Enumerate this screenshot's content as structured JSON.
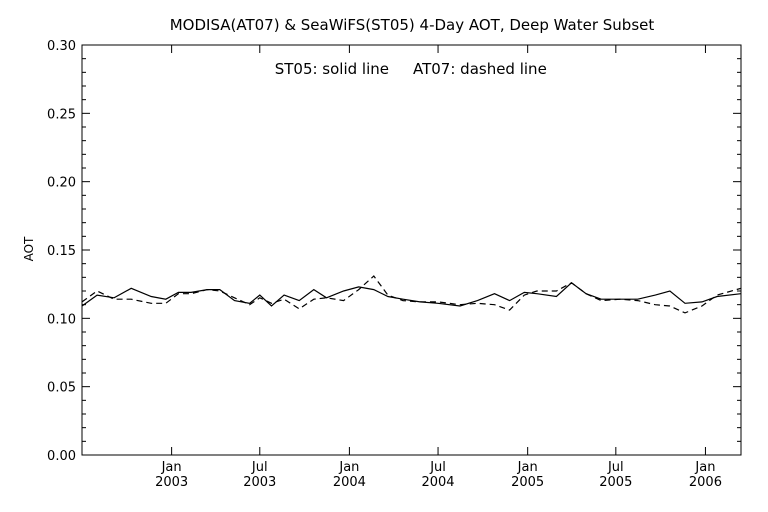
{
  "chart_data": {
    "type": "line",
    "title": "MODISA(AT07) & SeaWiFS(ST05) 4-Day AOT, Deep Water Subset",
    "annotation_left": "ST05: solid line",
    "annotation_right": "AT07: dashed line",
    "xlabel": "",
    "ylabel": "AOT",
    "ylim": [
      0.0,
      0.3
    ],
    "xlim": [
      "2002-07-01",
      "2006-03-15"
    ],
    "y_ticks": [
      "0.00",
      "0.05",
      "0.10",
      "0.15",
      "0.20",
      "0.25",
      "0.30"
    ],
    "x_ticks": [
      {
        "date": "2003-01-01",
        "month": "Jan",
        "year": "2003"
      },
      {
        "date": "2003-07-01",
        "month": "Jul",
        "year": "2003"
      },
      {
        "date": "2004-01-01",
        "month": "Jan",
        "year": "2004"
      },
      {
        "date": "2004-07-01",
        "month": "Jul",
        "year": "2004"
      },
      {
        "date": "2005-01-01",
        "month": "Jan",
        "year": "2005"
      },
      {
        "date": "2005-07-01",
        "month": "Jul",
        "year": "2005"
      },
      {
        "date": "2006-01-01",
        "month": "Jan",
        "year": "2006"
      }
    ],
    "grid": false,
    "legend": "none",
    "series": [
      {
        "name": "ST05",
        "style": "solid",
        "color": "#000000",
        "x": [
          "2002-07-01",
          "2002-08-01",
          "2002-09-05",
          "2002-10-10",
          "2002-11-20",
          "2002-12-20",
          "2003-01-15",
          "2003-02-10",
          "2003-03-15",
          "2003-04-10",
          "2003-05-10",
          "2003-06-10",
          "2003-07-01",
          "2003-07-25",
          "2003-08-20",
          "2003-09-20",
          "2003-10-20",
          "2003-11-15",
          "2003-12-20",
          "2004-01-20",
          "2004-02-20",
          "2004-03-20",
          "2004-04-20",
          "2004-05-25",
          "2004-07-01",
          "2004-08-15",
          "2004-09-20",
          "2004-10-25",
          "2004-11-25",
          "2004-12-25",
          "2005-01-20",
          "2005-03-01",
          "2005-04-01",
          "2005-05-01",
          "2005-06-01",
          "2005-07-10",
          "2005-08-15",
          "2005-09-20",
          "2005-10-20",
          "2005-11-20",
          "2005-12-25",
          "2006-01-25",
          "2006-03-15"
        ],
        "y": [
          0.109,
          0.117,
          0.115,
          0.122,
          0.116,
          0.114,
          0.119,
          0.119,
          0.121,
          0.121,
          0.113,
          0.111,
          0.117,
          0.109,
          0.117,
          0.113,
          0.121,
          0.115,
          0.12,
          0.123,
          0.121,
          0.116,
          0.114,
          0.112,
          0.111,
          0.109,
          0.113,
          0.118,
          0.113,
          0.119,
          0.118,
          0.116,
          0.126,
          0.118,
          0.114,
          0.114,
          0.114,
          0.117,
          0.12,
          0.111,
          0.112,
          0.116,
          0.118
        ]
      },
      {
        "name": "AT07",
        "style": "dashed",
        "color": "#000000",
        "x": [
          "2002-07-01",
          "2002-08-01",
          "2002-09-05",
          "2002-10-10",
          "2002-11-20",
          "2002-12-20",
          "2003-01-15",
          "2003-02-10",
          "2003-03-15",
          "2003-04-10",
          "2003-05-10",
          "2003-06-10",
          "2003-07-01",
          "2003-07-25",
          "2003-08-20",
          "2003-09-20",
          "2003-10-20",
          "2003-11-15",
          "2003-12-20",
          "2004-01-20",
          "2004-02-20",
          "2004-03-20",
          "2004-04-20",
          "2004-05-25",
          "2004-07-01",
          "2004-08-15",
          "2004-09-20",
          "2004-10-25",
          "2004-11-25",
          "2004-12-25",
          "2005-01-20",
          "2005-03-01",
          "2005-04-01",
          "2005-05-01",
          "2005-06-01",
          "2005-07-10",
          "2005-08-15",
          "2005-09-20",
          "2005-10-20",
          "2005-11-20",
          "2005-12-25",
          "2006-01-25",
          "2006-03-15"
        ],
        "y": [
          0.112,
          0.12,
          0.114,
          0.114,
          0.111,
          0.111,
          0.118,
          0.118,
          0.121,
          0.12,
          0.115,
          0.11,
          0.115,
          0.111,
          0.114,
          0.107,
          0.114,
          0.115,
          0.113,
          0.121,
          0.131,
          0.117,
          0.113,
          0.112,
          0.112,
          0.11,
          0.111,
          0.11,
          0.106,
          0.117,
          0.12,
          0.12,
          0.126,
          0.118,
          0.113,
          0.114,
          0.113,
          0.11,
          0.109,
          0.104,
          0.109,
          0.117,
          0.122
        ]
      }
    ]
  }
}
